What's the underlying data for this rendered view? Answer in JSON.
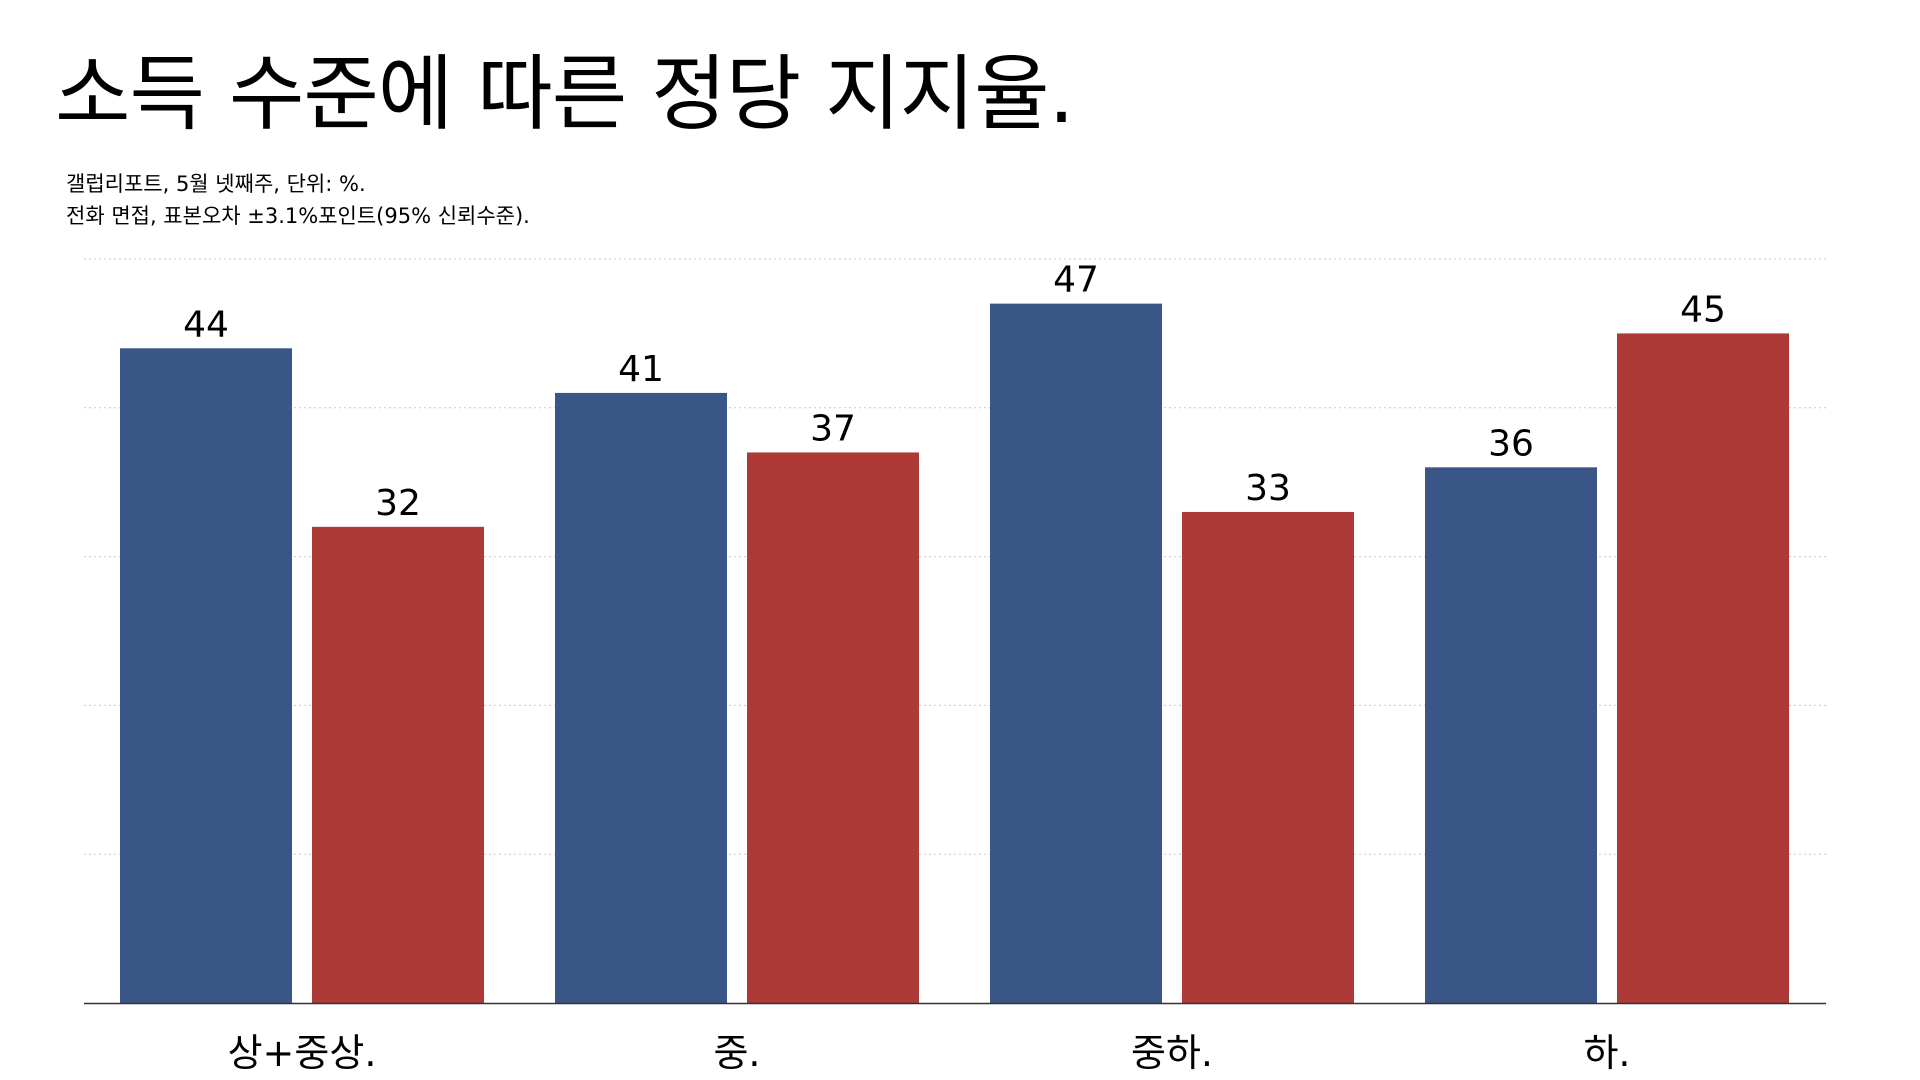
{
  "title": "소득 수준에 따른 정당 지지율.",
  "notes": {
    "source": "갤럽리포트, 5월 넷째주, 단위: %.",
    "method": "전화 면접, 표본오차 ±3.1%포인트(95% 신뢰수준)."
  },
  "colors": {
    "series_a": "#3a5686",
    "series_b": "#ad3a37",
    "grid": "#c8c8c8",
    "axis": "#333333"
  },
  "chart_data": {
    "type": "bar",
    "title": "소득 수준에 따른 정당 지지율.",
    "xlabel": "",
    "ylabel": "",
    "categories": [
      "상+중상.",
      "중.",
      "중하.",
      "하."
    ],
    "series": [
      {
        "values": [
          44,
          41,
          47,
          36
        ],
        "color": "#3a5686"
      },
      {
        "values": [
          32,
          37,
          33,
          45
        ],
        "color": "#ad3a37"
      }
    ],
    "ylim": [
      0,
      50
    ],
    "y_gridlines": [
      10,
      20,
      30,
      40,
      50
    ],
    "grid": true,
    "grid_style": "dotted",
    "legend": "none",
    "data_labels": true
  }
}
